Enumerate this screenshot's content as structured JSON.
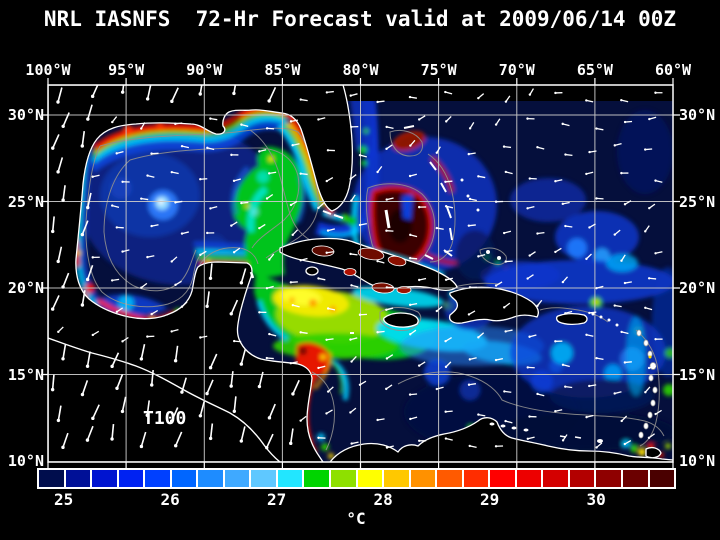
{
  "title": "NRL IASNFS  72-Hr Forecast valid at 2009/06/14 00Z",
  "map": {
    "annotation": "T100",
    "top_axis": {
      "labels": [
        "100°W",
        "95°W",
        "90°W",
        "85°W",
        "80°W",
        "75°W",
        "70°W",
        "65°W",
        "60°W"
      ]
    },
    "left_axis": {
      "labels": [
        "30°N",
        "25°N",
        "20°N",
        "15°N",
        "10°N"
      ]
    },
    "right_axis": {
      "labels": [
        "30°N",
        "25°N",
        "20°N",
        "15°N",
        "10°N"
      ]
    }
  },
  "colorbar": {
    "unit": "°C",
    "tick_labels": [
      "25",
      "26",
      "27",
      "28",
      "29",
      "30"
    ],
    "scale_min": 24.75,
    "scale_max": 30.75,
    "step": 0.25,
    "colors": [
      "#000d4d",
      "#001097",
      "#0014d0",
      "#0022f2",
      "#0040ff",
      "#0066ff",
      "#1e8cff",
      "#3fa9ff",
      "#5fc8ff",
      "#22e6ff",
      "#00d400",
      "#8ee000",
      "#ffff00",
      "#ffc800",
      "#ff9100",
      "#ff5a00",
      "#ff2d00",
      "#ff0000",
      "#ed0000",
      "#d40000",
      "#b30000",
      "#8f0000",
      "#6b0000",
      "#4a0000"
    ]
  }
}
